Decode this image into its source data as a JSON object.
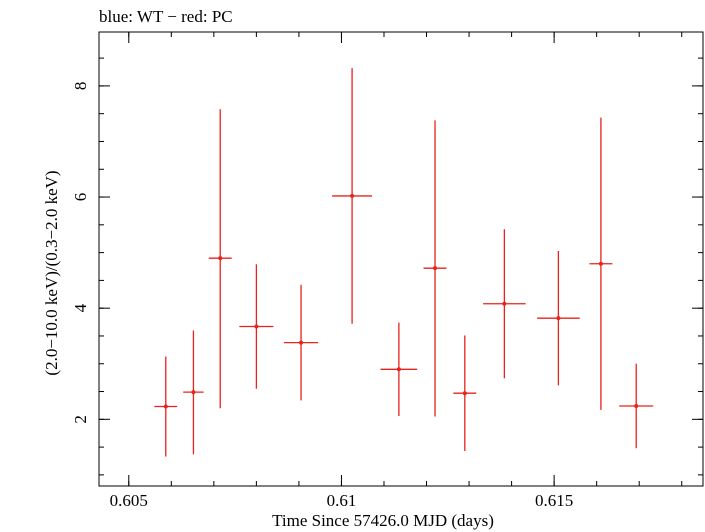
{
  "chart_data": {
    "type": "scatter",
    "title": "blue: WT − red: PC",
    "xlabel": "Time Since 57426.0 MJD (days)",
    "ylabel": "(2.0−10.0 keV)/(0.3−2.0 keV)",
    "xlim": [
      0.6043,
      0.6185
    ],
    "ylim": [
      0.8,
      8.97
    ],
    "xticks": [
      {
        "value": 0.605,
        "label": "0.605"
      },
      {
        "value": 0.61,
        "label": "0.61"
      },
      {
        "value": 0.615,
        "label": "0.615"
      }
    ],
    "yticks": [
      {
        "value": 2,
        "label": "2"
      },
      {
        "value": 4,
        "label": "4"
      },
      {
        "value": 6,
        "label": "6"
      },
      {
        "value": 8,
        "label": "8"
      }
    ],
    "grid": false,
    "series": [
      {
        "name": "PC",
        "color": "#e8231c",
        "points": [
          {
            "x": 0.60587,
            "xerr": 0.00027,
            "y": 2.23,
            "ylo": 1.33,
            "yhi": 3.13
          },
          {
            "x": 0.60652,
            "xerr": 0.00024,
            "y": 2.49,
            "ylo": 1.37,
            "yhi": 3.6
          },
          {
            "x": 0.60715,
            "xerr": 0.00027,
            "y": 4.9,
            "ylo": 2.2,
            "yhi": 7.58
          },
          {
            "x": 0.608,
            "xerr": 0.0004,
            "y": 3.67,
            "ylo": 2.55,
            "yhi": 4.79
          },
          {
            "x": 0.60905,
            "xerr": 0.0004,
            "y": 3.38,
            "ylo": 2.34,
            "yhi": 4.42
          },
          {
            "x": 0.61025,
            "xerr": 0.00047,
            "y": 6.02,
            "ylo": 3.72,
            "yhi": 8.32
          },
          {
            "x": 0.61135,
            "xerr": 0.00043,
            "y": 2.9,
            "ylo": 2.06,
            "yhi": 3.74
          },
          {
            "x": 0.6122,
            "xerr": 0.00027,
            "y": 4.72,
            "ylo": 2.05,
            "yhi": 7.38
          },
          {
            "x": 0.6129,
            "xerr": 0.00027,
            "y": 2.47,
            "ylo": 1.43,
            "yhi": 3.51
          },
          {
            "x": 0.61383,
            "xerr": 0.0005,
            "y": 4.08,
            "ylo": 2.74,
            "yhi": 5.42
          },
          {
            "x": 0.6151,
            "xerr": 0.0005,
            "y": 3.82,
            "ylo": 2.61,
            "yhi": 5.03
          },
          {
            "x": 0.6161,
            "xerr": 0.00027,
            "y": 4.8,
            "ylo": 2.17,
            "yhi": 7.43
          },
          {
            "x": 0.61693,
            "xerr": 0.0004,
            "y": 2.24,
            "ylo": 1.48,
            "yhi": 3.0
          }
        ]
      }
    ]
  }
}
